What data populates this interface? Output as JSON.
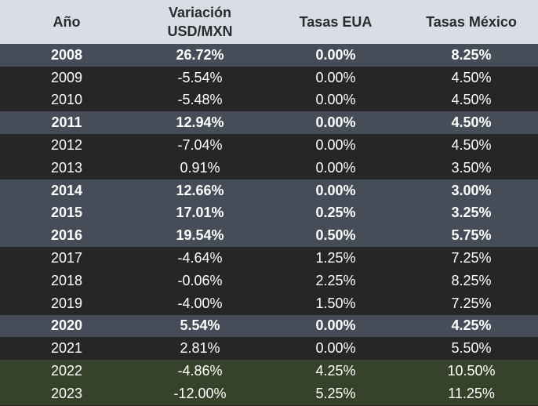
{
  "headers": [
    "Año",
    "Variación\nUSD/MXN",
    "Tasas EUA",
    "Tasas México"
  ],
  "row_styles": [
    "gray",
    "dark",
    "dark",
    "gray",
    "dark",
    "dark",
    "gray",
    "gray",
    "gray",
    "dark",
    "dark",
    "dark",
    "gray",
    "dark",
    "green",
    "green"
  ],
  "colors": {
    "header_bg": "#d9dde6",
    "gray_row": "#474d58",
    "dark_row": "#262626",
    "green_row": "#36432a",
    "text": "#ffffff"
  },
  "rows": [
    [
      "2008",
      "26.72%",
      "0.00%",
      "8.25%"
    ],
    [
      "2009",
      "-5.54%",
      "0.00%",
      "4.50%"
    ],
    [
      "2010",
      "-5.48%",
      "0.00%",
      "4.50%"
    ],
    [
      "2011",
      "12.94%",
      "0.00%",
      "4.50%"
    ],
    [
      "2012",
      "-7.04%",
      "0.00%",
      "4.50%"
    ],
    [
      "2013",
      "0.91%",
      "0.00%",
      "3.50%"
    ],
    [
      "2014",
      "12.66%",
      "0.00%",
      "3.00%"
    ],
    [
      "2015",
      "17.01%",
      "0.25%",
      "3.25%"
    ],
    [
      "2016",
      "19.54%",
      "0.50%",
      "5.75%"
    ],
    [
      "2017",
      "-4.64%",
      "1.25%",
      "7.25%"
    ],
    [
      "2018",
      "-0.06%",
      "2.25%",
      "8.25%"
    ],
    [
      "2019",
      "-4.00%",
      "1.50%",
      "7.25%"
    ],
    [
      "2020",
      "5.54%",
      "0.00%",
      "4.25%"
    ],
    [
      "2021",
      "2.81%",
      "0.00%",
      "5.50%"
    ],
    [
      "2022",
      "-4.86%",
      "4.25%",
      "10.50%"
    ],
    [
      "2023",
      "-12.00%",
      "5.25%",
      "11.25%"
    ]
  ]
}
